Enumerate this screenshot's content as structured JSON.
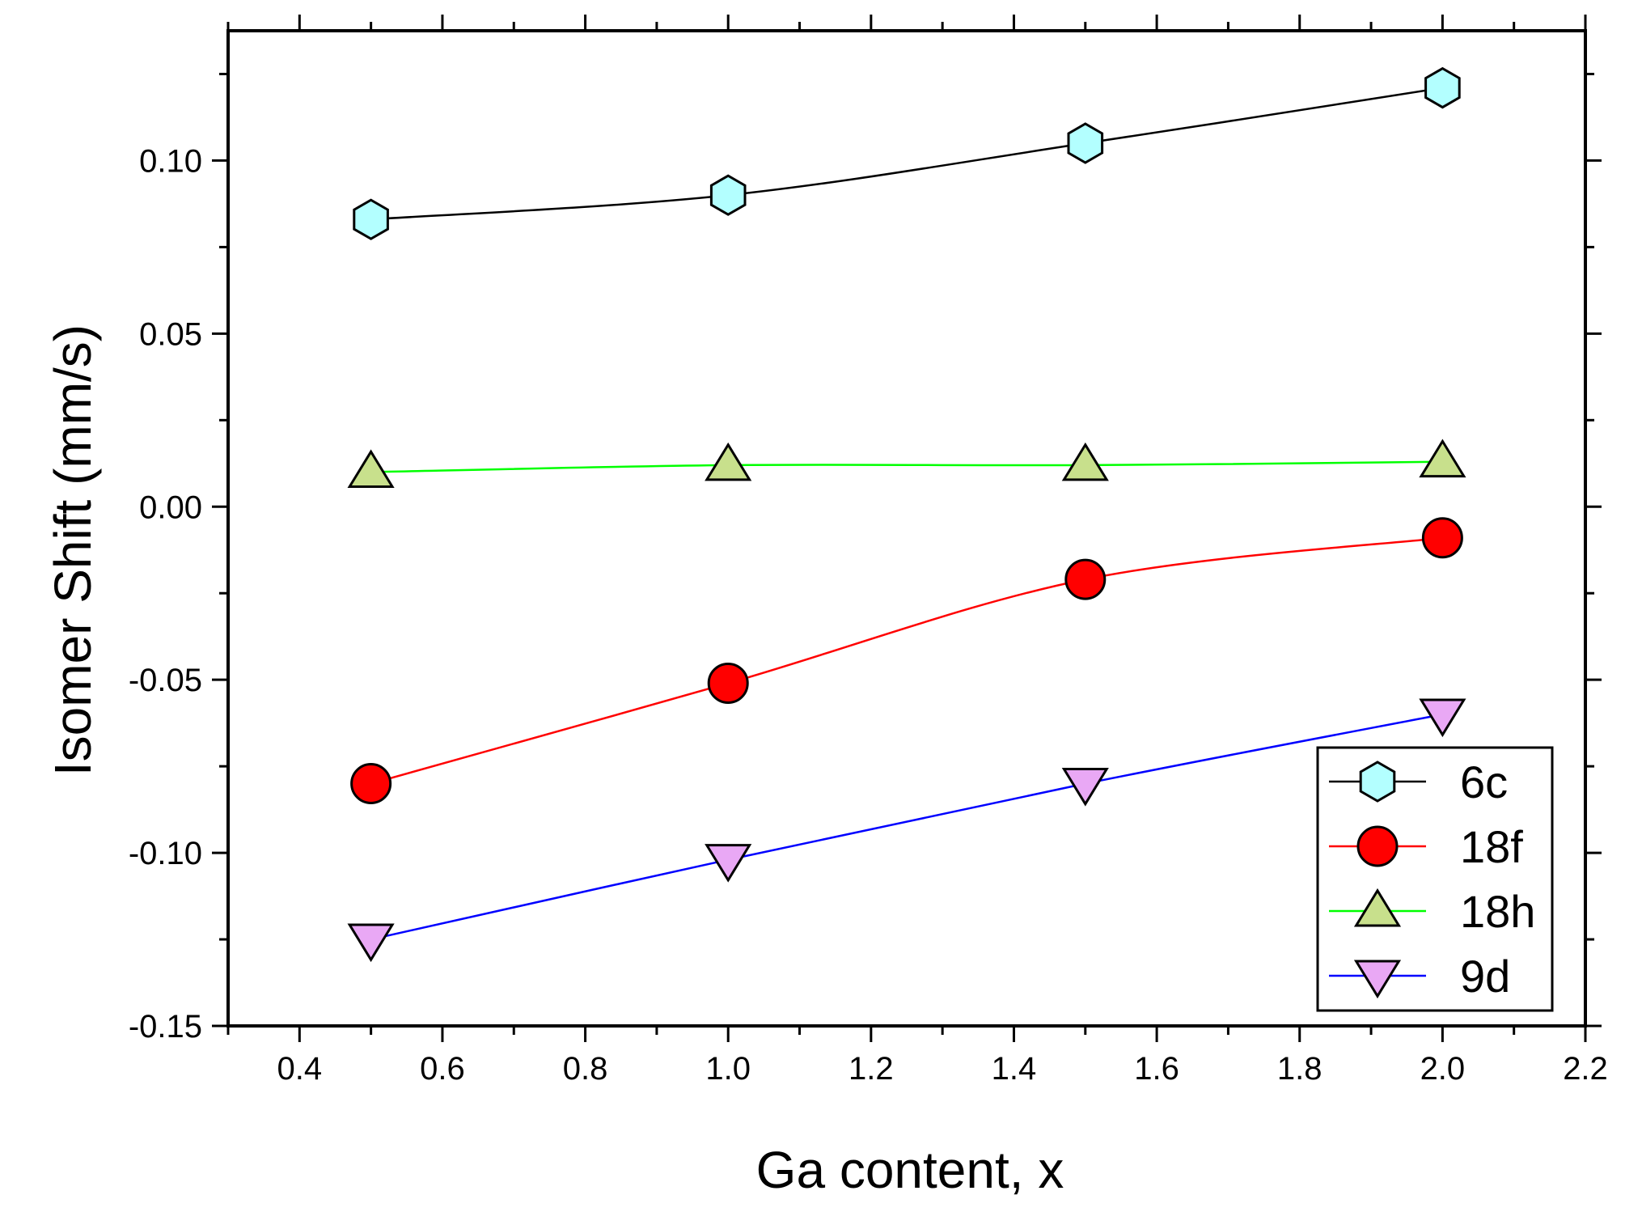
{
  "chart_data": {
    "type": "line",
    "xlabel": "Ga content, x",
    "ylabel": "Isomer Shift (mm/s)",
    "xlim": [
      0.3,
      2.2
    ],
    "ylim": [
      -0.15,
      0.1375
    ],
    "xticks": [
      "0.4",
      "0.6",
      "0.8",
      "1.0",
      "1.2",
      "1.4",
      "1.6",
      "1.8",
      "2.0",
      "2.2"
    ],
    "yticks": [
      "-0.15",
      "-0.10",
      "-0.05",
      "0.00",
      "0.05",
      "0.10"
    ],
    "x": [
      0.5,
      1.0,
      1.5,
      2.0
    ],
    "legend_position": "bottom-right",
    "series": [
      {
        "name": "6c",
        "values": [
          0.083,
          0.09,
          0.105,
          0.121
        ],
        "line_color": "#000000",
        "marker_fill": "#b3ffff",
        "marker": "hexagon"
      },
      {
        "name": "18f",
        "values": [
          -0.08,
          -0.051,
          -0.021,
          -0.009
        ],
        "line_color": "#ff0000",
        "marker_fill": "#ff0000",
        "marker": "circle"
      },
      {
        "name": "18h",
        "values": [
          0.01,
          0.012,
          0.012,
          0.013
        ],
        "line_color": "#00ff00",
        "marker_fill": "#c8e08c",
        "marker": "triangle-up"
      },
      {
        "name": "9d",
        "values": [
          -0.125,
          -0.102,
          -0.08,
          -0.06
        ],
        "line_color": "#0000ff",
        "marker_fill": "#e9a8f5",
        "marker": "triangle-down"
      }
    ]
  }
}
